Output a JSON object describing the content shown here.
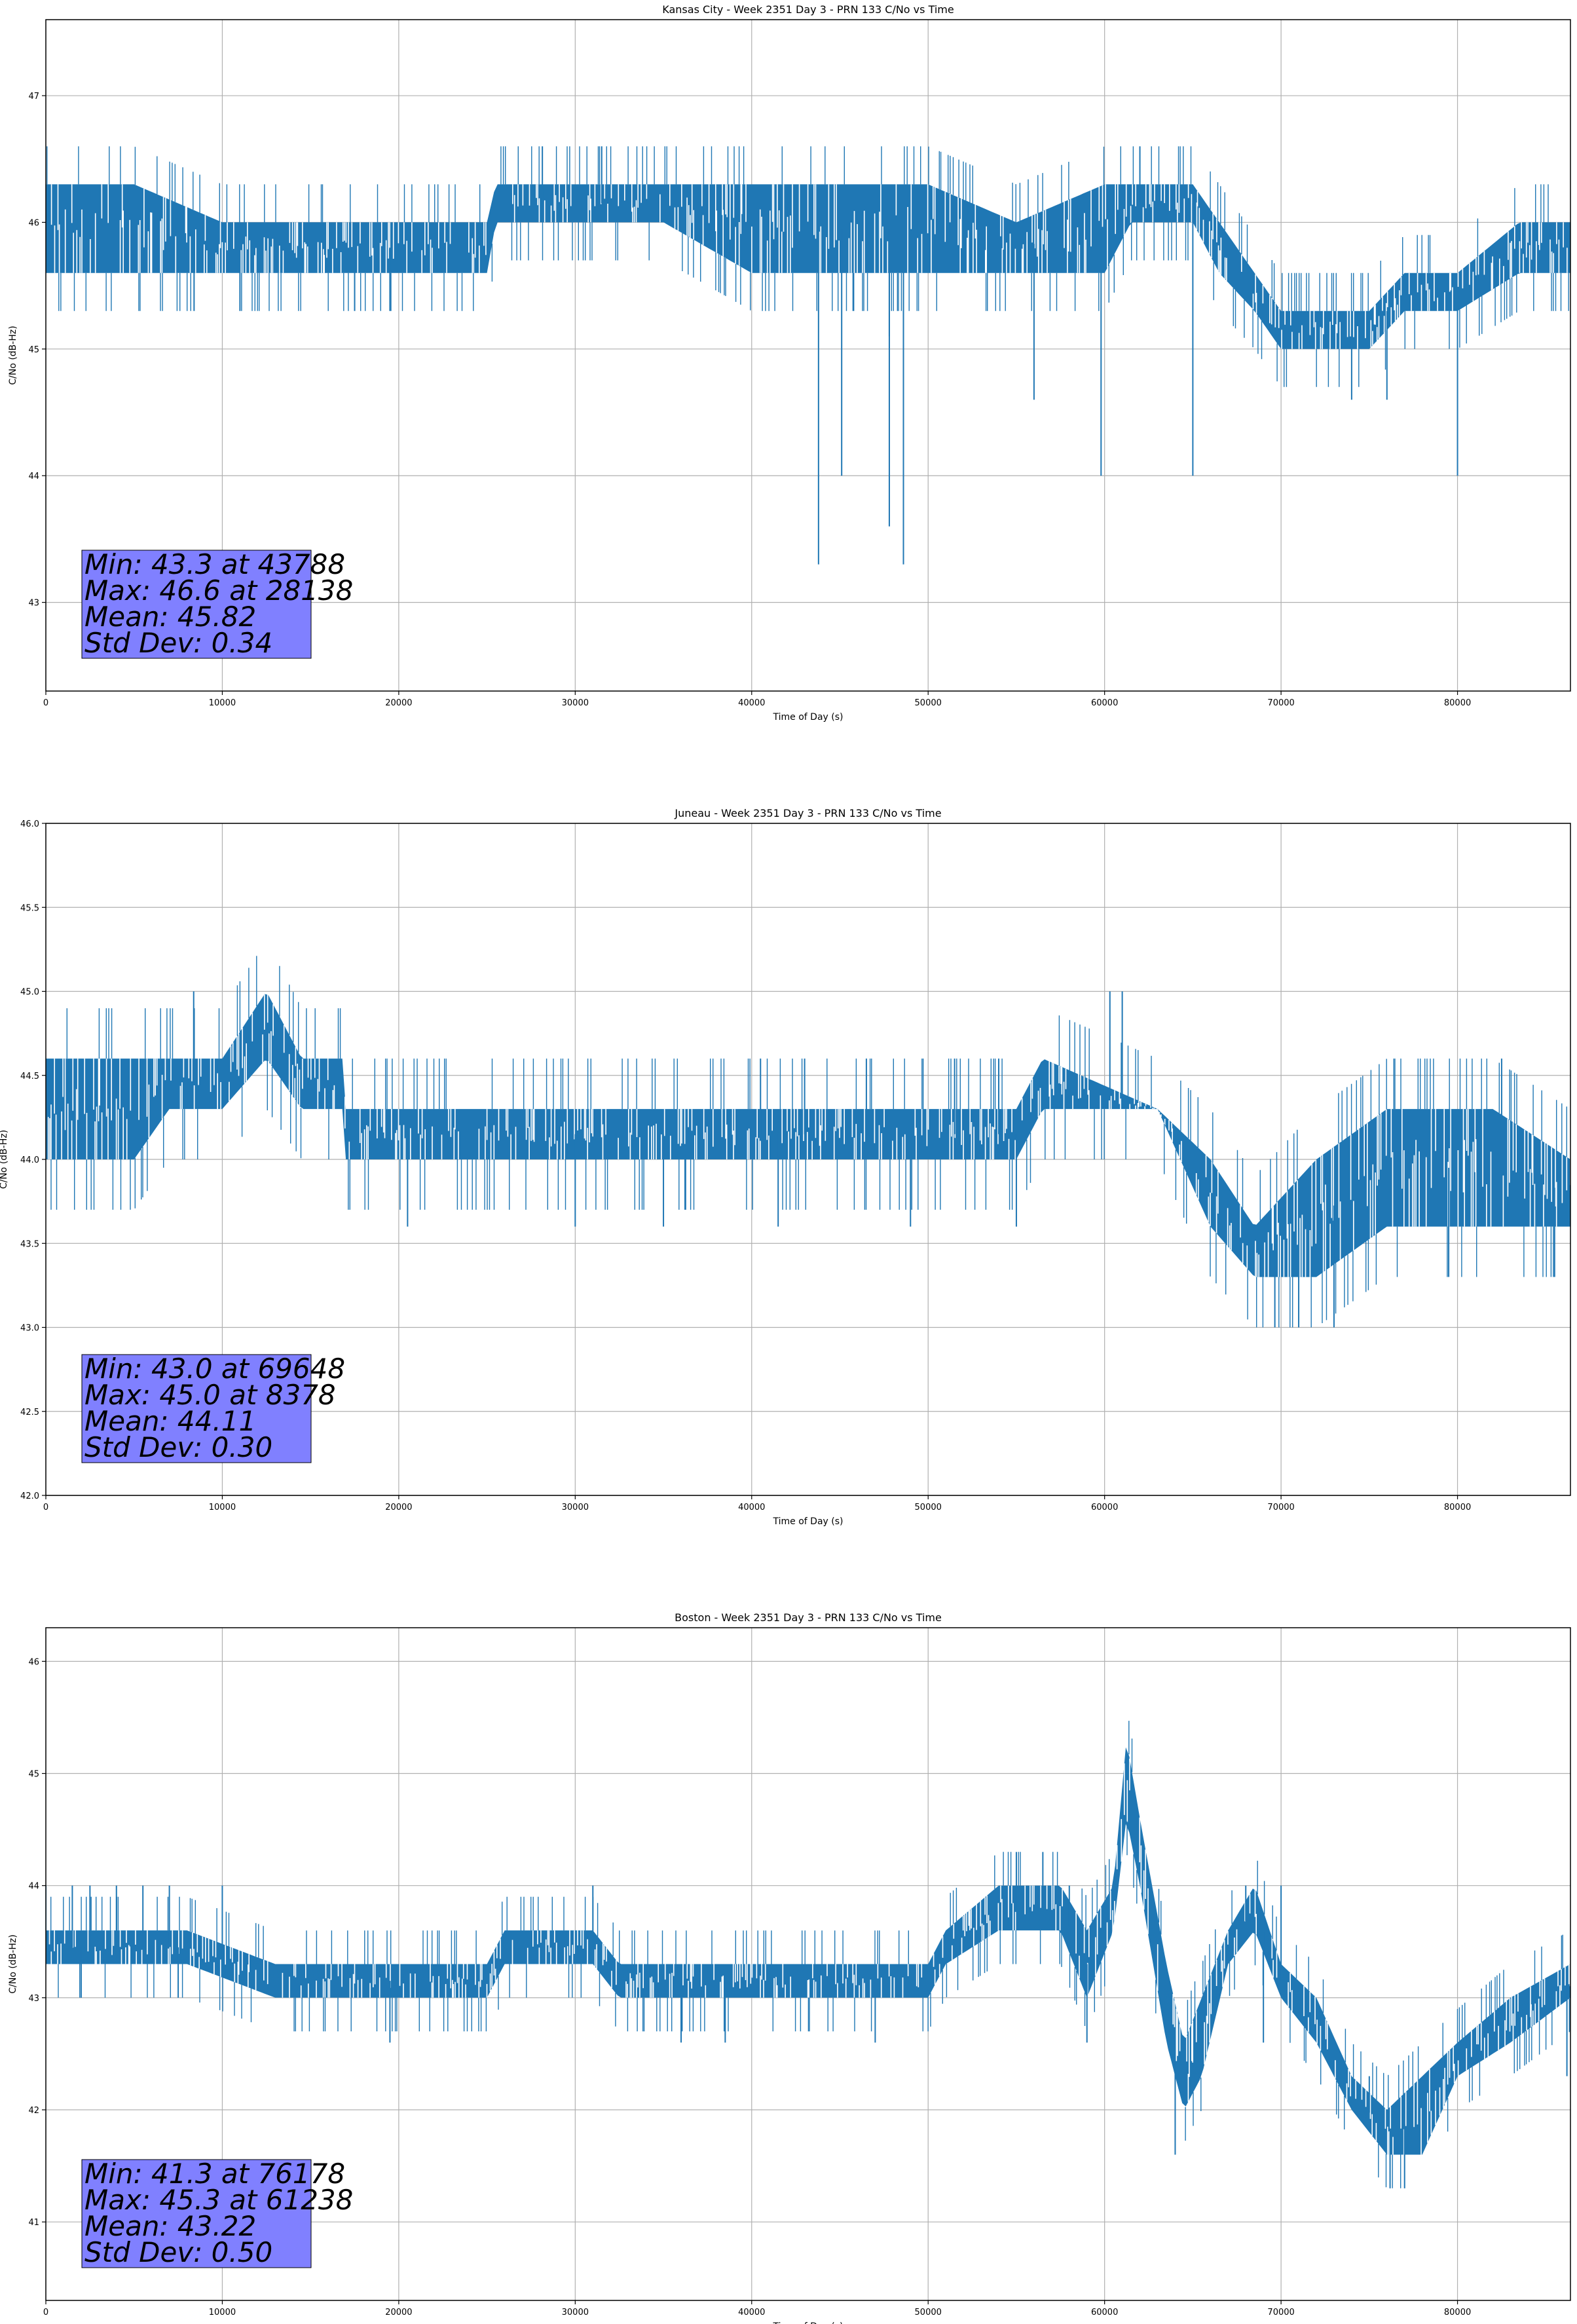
{
  "chart_data": [
    {
      "type": "line",
      "title": "Kansas City - Week 2351 Day 3 - PRN 133 C/No vs Time",
      "xlabel": "Time of Day (s)",
      "ylabel": "C/No (dB-Hz)",
      "xlim": [
        0,
        86400
      ],
      "ylim": [
        42.3,
        47.6
      ],
      "xticks": [
        0,
        10000,
        20000,
        30000,
        40000,
        50000,
        60000,
        70000,
        80000
      ],
      "yticks": [
        43,
        44,
        45,
        46,
        47
      ],
      "ytick_labels": [
        "43",
        "44",
        "45",
        "46",
        "47"
      ],
      "grid": true,
      "series_color": "#1f77b4",
      "stats_box": {
        "lines": [
          "Min: 43.3 at 43788",
          "Max: 46.6 at 28138",
          "Mean: 45.82",
          "Std Dev: 0.34"
        ],
        "color": "#8080ff"
      },
      "band": {
        "x": [
          0,
          5000,
          10000,
          15000,
          20000,
          25000,
          25500,
          30000,
          35000,
          40000,
          45000,
          50000,
          55000,
          60000,
          61500,
          65000,
          66500,
          68500,
          70000,
          75000,
          77000,
          80000,
          83500,
          86400
        ],
        "low": [
          45.6,
          45.6,
          45.6,
          45.6,
          45.6,
          45.6,
          46.0,
          46.0,
          46.0,
          45.6,
          45.6,
          45.6,
          45.6,
          45.6,
          46.0,
          46.0,
          45.6,
          45.3,
          45.0,
          45.0,
          45.3,
          45.3,
          45.6,
          45.6
        ],
        "high": [
          46.3,
          46.3,
          46.0,
          46.0,
          46.0,
          46.0,
          46.3,
          46.3,
          46.3,
          46.3,
          46.3,
          46.3,
          46.0,
          46.3,
          46.3,
          46.3,
          46.0,
          45.6,
          45.3,
          45.3,
          45.6,
          45.6,
          46.0,
          46.0
        ]
      },
      "spikes": [
        [
          43788,
          43.3
        ],
        [
          45100,
          44.0
        ],
        [
          47800,
          43.6
        ],
        [
          48600,
          43.3
        ],
        [
          59800,
          44.0
        ],
        [
          65000,
          44.0
        ],
        [
          80000,
          44.0
        ],
        [
          56000,
          44.6
        ],
        [
          74000,
          44.6
        ],
        [
          28138,
          46.6
        ],
        [
          31500,
          46.6
        ],
        [
          62000,
          46.6
        ],
        [
          8400,
          45.3
        ],
        [
          11000,
          45.3
        ],
        [
          17500,
          45.3
        ],
        [
          19500,
          45.3
        ],
        [
          47800,
          45.1
        ],
        [
          76000,
          44.6
        ]
      ]
    },
    {
      "type": "line",
      "title": "Juneau - Week 2351 Day 3 - PRN 133 C/No vs Time",
      "xlabel": "Time of Day (s)",
      "ylabel": "C/No (dB-Hz)",
      "xlim": [
        0,
        86400
      ],
      "ylim": [
        42.0,
        46.0
      ],
      "xticks": [
        0,
        10000,
        20000,
        30000,
        40000,
        50000,
        60000,
        70000,
        80000
      ],
      "yticks": [
        42.0,
        42.5,
        43.0,
        43.5,
        44.0,
        44.5,
        45.0,
        45.5,
        46.0
      ],
      "ytick_labels": [
        "42.0",
        "42.5",
        "43.0",
        "43.5",
        "44.0",
        "44.5",
        "45.0",
        "45.5",
        "46.0"
      ],
      "grid": true,
      "series_color": "#1f77b4",
      "stats_box": {
        "lines": [
          "Min: 43.0 at 69648",
          "Max: 45.0 at 8378",
          "Mean: 44.11",
          "Std Dev: 0.30"
        ],
        "color": "#8080ff"
      },
      "band": {
        "x": [
          0,
          5000,
          7000,
          10000,
          12500,
          14500,
          16800,
          17000,
          25000,
          35000,
          45000,
          55000,
          56500,
          63000,
          66000,
          68500,
          72000,
          76000,
          79000,
          82000,
          86400
        ],
        "low": [
          44.0,
          44.0,
          44.3,
          44.3,
          44.6,
          44.3,
          44.3,
          44.0,
          44.0,
          44.0,
          44.0,
          44.0,
          44.3,
          44.3,
          43.6,
          43.3,
          43.3,
          43.6,
          43.6,
          43.6,
          43.6
        ],
        "high": [
          44.6,
          44.6,
          44.6,
          44.6,
          45.0,
          44.6,
          44.6,
          44.3,
          44.3,
          44.3,
          44.3,
          44.3,
          44.6,
          44.3,
          44.0,
          43.6,
          44.0,
          44.3,
          44.3,
          44.3,
          44.0
        ],
        "gaps": [
          [
            12500,
            14300,
            44.3,
            44.6
          ]
        ]
      },
      "spikes": [
        [
          8378,
          45.0
        ],
        [
          60300,
          45.0
        ],
        [
          61000,
          45.0
        ],
        [
          69648,
          43.0
        ],
        [
          71000,
          43.0
        ],
        [
          73000,
          43.0
        ],
        [
          40500,
          44.6
        ],
        [
          43000,
          44.6
        ],
        [
          46500,
          44.6
        ],
        [
          51500,
          44.6
        ],
        [
          54000,
          44.6
        ],
        [
          82500,
          44.6
        ],
        [
          20500,
          43.6
        ],
        [
          30000,
          43.6
        ],
        [
          35000,
          43.6
        ],
        [
          41500,
          43.6
        ],
        [
          49000,
          43.6
        ],
        [
          55000,
          43.6
        ],
        [
          79500,
          43.3
        ],
        [
          85500,
          43.3
        ]
      ]
    },
    {
      "type": "line",
      "title": "Boston - Week 2351 Day 3 - PRN 133 C/No vs Time",
      "xlabel": "Time of Day (s)",
      "ylabel": "C/No (dB-Hz)",
      "xlim": [
        0,
        86400
      ],
      "ylim": [
        40.3,
        46.3
      ],
      "xticks": [
        0,
        10000,
        20000,
        30000,
        40000,
        50000,
        60000,
        70000,
        80000
      ],
      "yticks": [
        41,
        42,
        43,
        44,
        45,
        46
      ],
      "ytick_labels": [
        "41",
        "42",
        "43",
        "44",
        "45",
        "46"
      ],
      "grid": true,
      "series_color": "#1f77b4",
      "stats_box": {
        "lines": [
          "Min: 41.3 at 76178",
          "Max: 45.3 at 61238",
          "Mean: 43.22",
          "Std Dev: 0.50"
        ],
        "color": "#8080ff"
      },
      "band": {
        "x": [
          0,
          7500,
          8000,
          13000,
          25000,
          26000,
          31000,
          32500,
          40000,
          50000,
          51000,
          54000,
          57500,
          59000,
          60500,
          61238,
          62000,
          63500,
          64500,
          65500,
          67000,
          68500,
          70000,
          72000,
          74000,
          76000,
          78000,
          80000,
          83000,
          86400
        ],
        "low": [
          43.3,
          43.3,
          43.3,
          43.0,
          43.0,
          43.3,
          43.3,
          43.0,
          43.0,
          43.0,
          43.3,
          43.6,
          43.6,
          43.0,
          43.6,
          44.6,
          44.0,
          42.6,
          42.0,
          42.3,
          43.3,
          43.6,
          43.0,
          42.6,
          42.0,
          41.6,
          41.6,
          42.3,
          42.6,
          43.0
        ],
        "high": [
          43.6,
          43.6,
          43.6,
          43.3,
          43.3,
          43.6,
          43.6,
          43.3,
          43.3,
          43.3,
          43.6,
          44.0,
          44.0,
          43.6,
          44.0,
          45.3,
          44.6,
          43.3,
          42.6,
          43.0,
          43.6,
          44.0,
          43.3,
          43.0,
          42.3,
          42.0,
          42.3,
          42.6,
          43.0,
          43.3
        ]
      },
      "spikes": [
        [
          0,
          44.0
        ],
        [
          1500,
          44.0
        ],
        [
          2500,
          44.0
        ],
        [
          4000,
          44.0
        ],
        [
          5500,
          44.0
        ],
        [
          7000,
          44.0
        ],
        [
          10000,
          44.0
        ],
        [
          31000,
          44.0
        ],
        [
          55000,
          44.3
        ],
        [
          56500,
          44.3
        ],
        [
          58000,
          44.0
        ],
        [
          64000,
          41.6
        ],
        [
          76178,
          41.3
        ],
        [
          77000,
          41.3
        ],
        [
          19500,
          42.6
        ],
        [
          36000,
          42.6
        ],
        [
          38500,
          42.6
        ],
        [
          47000,
          42.6
        ],
        [
          2000,
          43.0
        ],
        [
          7500,
          43.0
        ],
        [
          59000,
          42.6
        ],
        [
          69000,
          42.6
        ],
        [
          75000,
          42.3
        ],
        [
          86200,
          42.3
        ],
        [
          70000,
          44.0
        ],
        [
          68000,
          44.0
        ]
      ]
    }
  ]
}
